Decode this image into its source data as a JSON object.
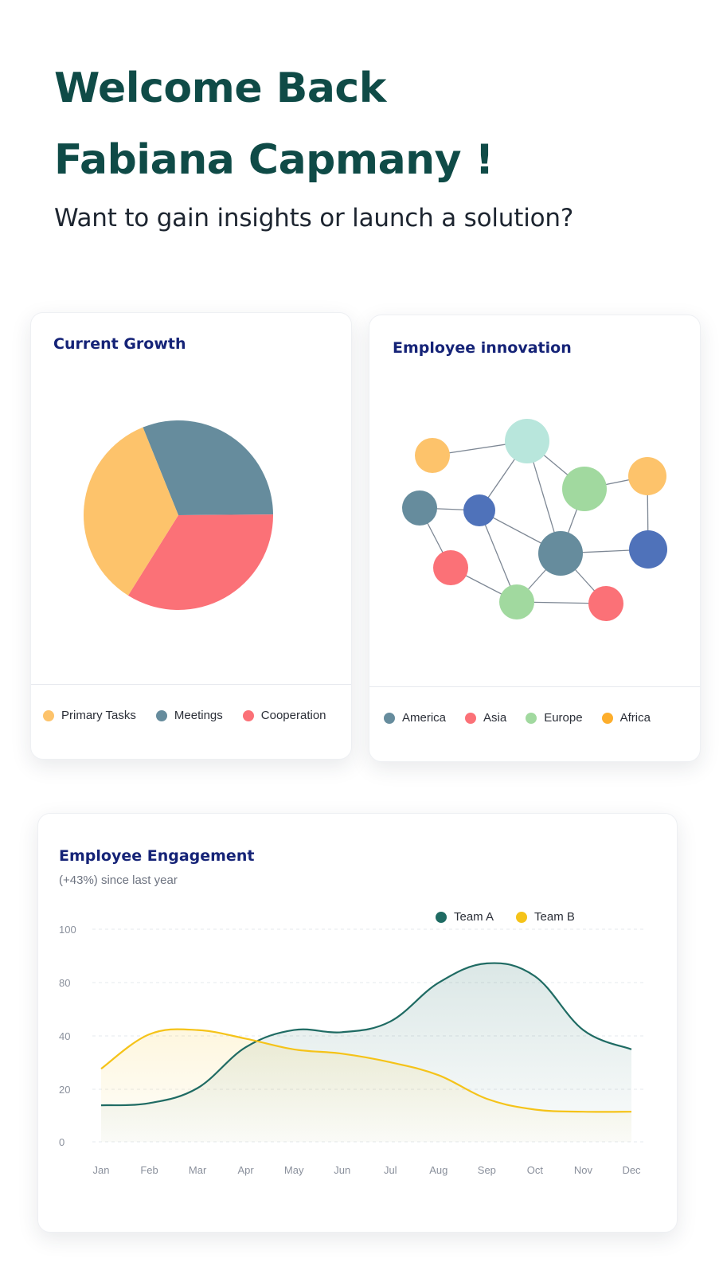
{
  "hero": {
    "title_line1": "Welcome Back",
    "title_line2": "Fabiana Capmany !",
    "subtitle": "Want to gain insights or launch a solution?"
  },
  "colors": {
    "hero_title": "#0f4b47",
    "card_title": "#152377",
    "primary_tasks": "#fdc36b",
    "meetings": "#668c9d",
    "cooperation": "#fb7177",
    "america": "#668c9d",
    "asia": "#fb7177",
    "europe": "#a1d99f",
    "africa": "#fdae2c",
    "team_a": "#1f6b63",
    "team_b": "#f5c319"
  },
  "growth": {
    "title": "Current Growth",
    "legend": [
      {
        "label": "Primary Tasks",
        "color": "#fdc36b"
      },
      {
        "label": "Meetings",
        "color": "#668c9d"
      },
      {
        "label": "Cooperation",
        "color": "#fb7177"
      }
    ]
  },
  "innovation": {
    "title": "Employee innovation",
    "legend": [
      {
        "label": "America",
        "color": "#668c9d"
      },
      {
        "label": "Asia",
        "color": "#fb7177"
      },
      {
        "label": "Europe",
        "color": "#a1d99f"
      },
      {
        "label": "Africa",
        "color": "#fdae2c"
      }
    ]
  },
  "engagement": {
    "title": "Employee Engagement",
    "subtitle": "(+43%) since last year",
    "legend": [
      {
        "label": "Team A",
        "color": "#1f6b63"
      },
      {
        "label": "Team B",
        "color": "#f5c319"
      }
    ]
  },
  "chart_data": [
    {
      "type": "pie",
      "title": "Current Growth",
      "categories": [
        "Meetings",
        "Cooperation",
        "Primary Tasks"
      ],
      "values": [
        31,
        34,
        35
      ],
      "colors": [
        "#668c9d",
        "#fb7177",
        "#fdc36b"
      ]
    },
    {
      "type": "line",
      "title": "Employee Engagement",
      "categories": [
        "Jan",
        "Feb",
        "Mar",
        "Apr",
        "May",
        "Jun",
        "Jul",
        "Aug",
        "Sep",
        "Oct",
        "Nov",
        "Dec"
      ],
      "y_ticks": [
        0,
        20,
        40,
        80,
        100
      ],
      "ylim": [
        0,
        100
      ],
      "grid": true,
      "legend_position": "top-right",
      "series": [
        {
          "name": "Team A",
          "color": "#1f6b63",
          "values": [
            17,
            18,
            25,
            44,
            52,
            51,
            56,
            74,
            83,
            77,
            52,
            43
          ]
        },
        {
          "name": "Team B",
          "color": "#f5c319",
          "values": [
            34,
            50,
            52,
            48,
            43,
            41,
            37,
            31,
            20,
            15,
            14,
            14
          ]
        }
      ]
    }
  ]
}
